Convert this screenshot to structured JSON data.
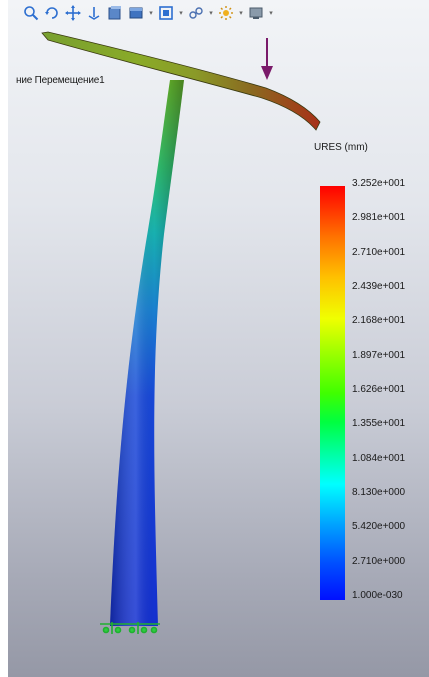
{
  "viewport": {
    "study_label": "ние Перемещение1"
  },
  "toolbar": {
    "icons": [
      {
        "name": "zoom-to-fit-icon",
        "dropdown": false
      },
      {
        "name": "rotate-view-icon",
        "dropdown": false
      },
      {
        "name": "pan-icon",
        "dropdown": false
      },
      {
        "name": "section-view-icon",
        "dropdown": false
      },
      {
        "name": "view-orientation-icon",
        "dropdown": false
      },
      {
        "name": "display-style-icon",
        "dropdown": true
      },
      {
        "name": "hide-show-items-icon",
        "dropdown": true
      },
      {
        "name": "edit-appearance-icon",
        "dropdown": true
      },
      {
        "name": "apply-scene-icon",
        "dropdown": true
      },
      {
        "name": "view-settings-icon",
        "dropdown": true
      }
    ]
  },
  "legend": {
    "title": "URES (mm)",
    "labels": [
      "3.252e+001",
      "2.981e+001",
      "2.710e+001",
      "2.439e+001",
      "2.168e+001",
      "1.897e+001",
      "1.626e+001",
      "1.355e+001",
      "1.084e+001",
      "8.130e+000",
      "5.420e+000",
      "2.710e+000",
      "1.000e-030"
    ]
  },
  "colors": {
    "max": "#ff0000",
    "min": "#0010ff",
    "load_arrow": "#7a1a6a",
    "fixture": "#2ecc40"
  }
}
